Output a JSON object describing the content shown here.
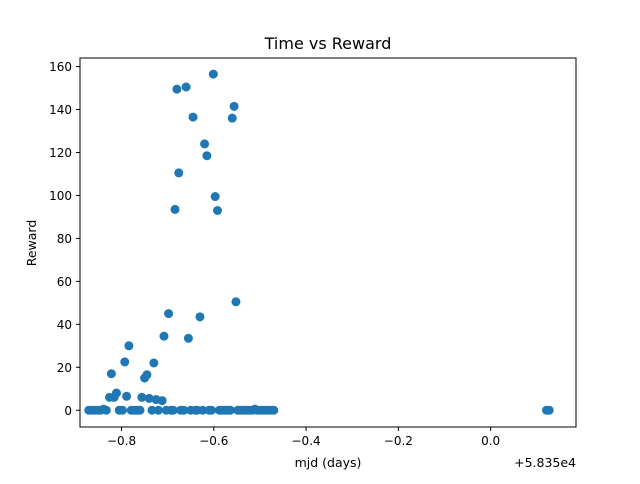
{
  "chart_data": {
    "type": "scatter",
    "title": "Time vs Reward",
    "xlabel": "mjd (days)",
    "ylabel": "Reward",
    "x_offset_label": "+5.835e4",
    "xlim": [
      -0.89,
      0.185
    ],
    "ylim": [
      -7.8,
      164
    ],
    "xticks": [
      {
        "value": -0.8,
        "label": "−0.8"
      },
      {
        "value": -0.6,
        "label": "−0.6"
      },
      {
        "value": -0.4,
        "label": "−0.4"
      },
      {
        "value": -0.2,
        "label": "−0.2"
      },
      {
        "value": 0.0,
        "label": "0.0"
      }
    ],
    "yticks": [
      {
        "value": 0,
        "label": "0"
      },
      {
        "value": 20,
        "label": "20"
      },
      {
        "value": 40,
        "label": "40"
      },
      {
        "value": 60,
        "label": "60"
      },
      {
        "value": 80,
        "label": "80"
      },
      {
        "value": 100,
        "label": "100"
      },
      {
        "value": 120,
        "label": "120"
      },
      {
        "value": 140,
        "label": "140"
      },
      {
        "value": 160,
        "label": "160"
      }
    ],
    "grid": false,
    "legend": null,
    "marker_color": "#1f77b4",
    "series": [
      {
        "name": "reward",
        "points": [
          {
            "x": -0.871,
            "y": 0
          },
          {
            "x": -0.865,
            "y": 0
          },
          {
            "x": -0.858,
            "y": 0
          },
          {
            "x": -0.852,
            "y": 0
          },
          {
            "x": -0.845,
            "y": 0
          },
          {
            "x": -0.839,
            "y": 0.5
          },
          {
            "x": -0.833,
            "y": 0
          },
          {
            "x": -0.826,
            "y": 6
          },
          {
            "x": -0.822,
            "y": 17
          },
          {
            "x": -0.816,
            "y": 6
          },
          {
            "x": -0.811,
            "y": 8
          },
          {
            "x": -0.805,
            "y": 0
          },
          {
            "x": -0.798,
            "y": 0
          },
          {
            "x": -0.793,
            "y": 22.5
          },
          {
            "x": -0.789,
            "y": 6.5
          },
          {
            "x": -0.784,
            "y": 30
          },
          {
            "x": -0.779,
            "y": 0
          },
          {
            "x": -0.772,
            "y": 0
          },
          {
            "x": -0.766,
            "y": 0
          },
          {
            "x": -0.76,
            "y": 0
          },
          {
            "x": -0.756,
            "y": 6
          },
          {
            "x": -0.75,
            "y": 15
          },
          {
            "x": -0.745,
            "y": 16.5
          },
          {
            "x": -0.74,
            "y": 5.5
          },
          {
            "x": -0.734,
            "y": 0
          },
          {
            "x": -0.73,
            "y": 22
          },
          {
            "x": -0.725,
            "y": 5
          },
          {
            "x": -0.72,
            "y": 0
          },
          {
            "x": -0.712,
            "y": 4.5
          },
          {
            "x": -0.708,
            "y": 34.5
          },
          {
            "x": -0.703,
            "y": 0
          },
          {
            "x": -0.698,
            "y": 45
          },
          {
            "x": -0.693,
            "y": 0
          },
          {
            "x": -0.688,
            "y": 0
          },
          {
            "x": -0.684,
            "y": 93.5
          },
          {
            "x": -0.68,
            "y": 149.5
          },
          {
            "x": -0.676,
            "y": 110.5
          },
          {
            "x": -0.672,
            "y": 0
          },
          {
            "x": -0.665,
            "y": 0
          },
          {
            "x": -0.66,
            "y": 150.5
          },
          {
            "x": -0.655,
            "y": 33.5
          },
          {
            "x": -0.65,
            "y": 0
          },
          {
            "x": -0.645,
            "y": 136.5
          },
          {
            "x": -0.64,
            "y": 0
          },
          {
            "x": -0.636,
            "y": 0
          },
          {
            "x": -0.63,
            "y": 43.5
          },
          {
            "x": -0.624,
            "y": 0
          },
          {
            "x": -0.62,
            "y": 124
          },
          {
            "x": -0.615,
            "y": 118.5
          },
          {
            "x": -0.61,
            "y": 0
          },
          {
            "x": -0.605,
            "y": 0
          },
          {
            "x": -0.601,
            "y": 156.5
          },
          {
            "x": -0.597,
            "y": 99.5
          },
          {
            "x": -0.592,
            "y": 93
          },
          {
            "x": -0.588,
            "y": 0
          },
          {
            "x": -0.582,
            "y": 0
          },
          {
            "x": -0.577,
            "y": 0
          },
          {
            "x": -0.572,
            "y": 0
          },
          {
            "x": -0.568,
            "y": 0
          },
          {
            "x": -0.564,
            "y": 0
          },
          {
            "x": -0.56,
            "y": 136
          },
          {
            "x": -0.556,
            "y": 141.5
          },
          {
            "x": -0.552,
            "y": 50.5
          },
          {
            "x": -0.548,
            "y": 0
          },
          {
            "x": -0.543,
            "y": 0
          },
          {
            "x": -0.538,
            "y": 0
          },
          {
            "x": -0.533,
            "y": 0
          },
          {
            "x": -0.528,
            "y": 0
          },
          {
            "x": -0.522,
            "y": 0
          },
          {
            "x": -0.516,
            "y": 0
          },
          {
            "x": -0.511,
            "y": 0.5
          },
          {
            "x": -0.506,
            "y": 0
          },
          {
            "x": -0.5,
            "y": 0
          },
          {
            "x": -0.494,
            "y": 0
          },
          {
            "x": -0.488,
            "y": 0
          },
          {
            "x": -0.481,
            "y": 0
          },
          {
            "x": -0.475,
            "y": 0
          },
          {
            "x": -0.47,
            "y": 0
          },
          {
            "x": 0.121,
            "y": 0
          },
          {
            "x": 0.127,
            "y": 0
          }
        ]
      }
    ]
  }
}
